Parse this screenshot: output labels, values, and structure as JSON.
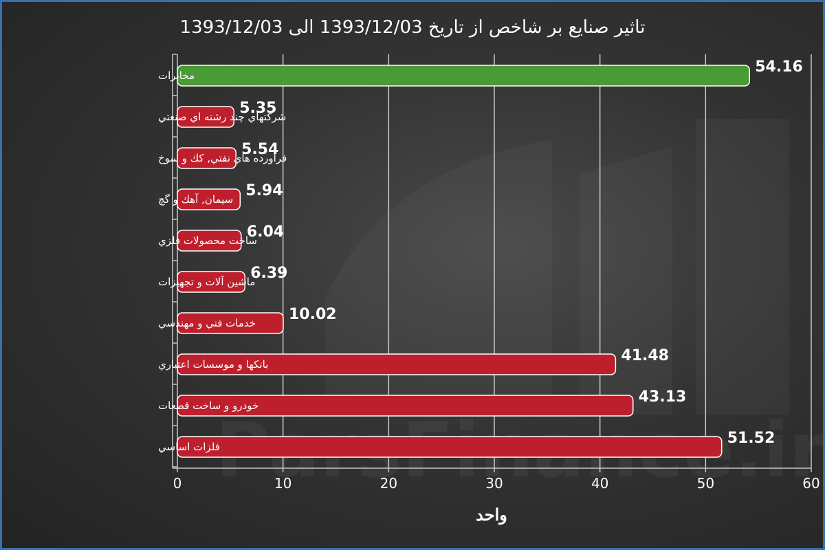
{
  "colors": {
    "highlight": "#4a9a36",
    "bar": "#be1f2d",
    "bar_stroke": "#ffffff",
    "grid": "#c8c8c8",
    "text": "#ffffff",
    "frame": "#3a6fb0"
  },
  "watermark": {
    "text": "ParsFinance.ir"
  },
  "logo": {
    "text": "واحد"
  },
  "chart_data": {
    "type": "bar",
    "orientation": "horizontal",
    "title": "تاثیر صنایع بر شاخص از تاریخ 1393/12/03 الی 1393/12/03",
    "xlim": [
      0,
      60
    ],
    "xticks": [
      0,
      10,
      20,
      30,
      40,
      50,
      60
    ],
    "grid": true,
    "categories": [
      "مخابرات",
      "شركتهاي چند رشته اي صنعتي",
      "فراورده هاي نفتي, كك و سوخ",
      "سيمان, آهك و گچ",
      "ساخت محصولات فلزي",
      "ماشين آلات و تجهيزات",
      "خدمات فني و مهندسي",
      "بانكها و موسسات اعتباري",
      "خودرو و ساخت قطعات",
      "فلزات اساسي"
    ],
    "values": [
      54.16,
      5.35,
      5.54,
      5.94,
      6.04,
      6.39,
      10.02,
      41.48,
      43.13,
      51.52
    ],
    "value_labels": [
      "54.16",
      "5.35",
      "5.54",
      "5.94",
      "6.04",
      "6.39",
      "10.02",
      "41.48",
      "43.13",
      "51.52"
    ],
    "highlight_index": 0
  }
}
